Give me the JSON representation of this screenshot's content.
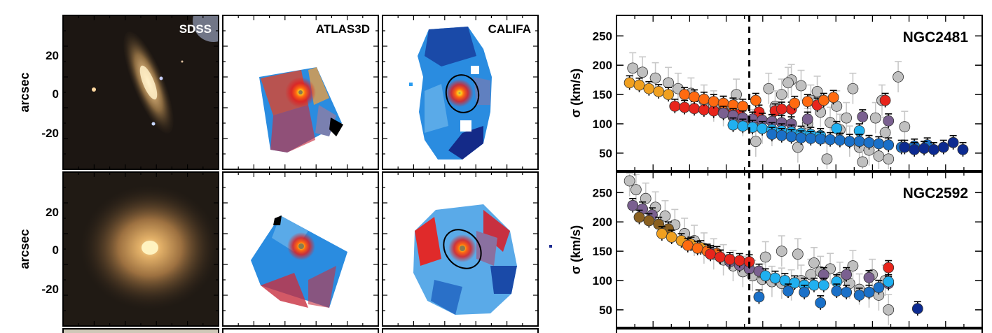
{
  "figure": {
    "column_labels": [
      "SDSS",
      "ATLAS3D",
      "CALIFA"
    ],
    "image_ylabel": "arcsec",
    "image_yticks": [
      "20",
      "0",
      "-20"
    ],
    "sigma_ylabel": "σ (km/s)",
    "colors": {
      "grey": "#c0c0c0",
      "red": "#e8251c",
      "orange": "#ff6a10",
      "gold": "#f0a020",
      "purple": "#7a6090",
      "lightblue": "#20b0f0",
      "blue": "#1a70c8",
      "navy": "#0c2a90",
      "brown": "#8a6020"
    }
  },
  "chart_data": [
    {
      "type": "scatter",
      "title": "NGC2481",
      "ylabel": "σ (km/s)",
      "ylim": [
        20,
        285
      ],
      "xlim": [
        0,
        10
      ],
      "yticks": [
        50,
        100,
        150,
        200,
        250
      ],
      "vline_x": 3.8,
      "series": [
        {
          "color": "grey",
          "points": [
            [
              0.2,
              195
            ],
            [
              0.5,
              188
            ],
            [
              0.9,
              178
            ],
            [
              1.3,
              170
            ],
            [
              1.6,
              160
            ],
            [
              2.0,
              152
            ],
            [
              2.4,
              140
            ],
            [
              2.7,
              130
            ],
            [
              3.0,
              122
            ],
            [
              3.3,
              112
            ],
            [
              3.6,
              105
            ],
            [
              3.9,
              98
            ],
            [
              4.2,
              92
            ],
            [
              4.5,
              88
            ],
            [
              4.8,
              150
            ],
            [
              5.1,
              175
            ],
            [
              5.4,
              165
            ],
            [
              5.7,
              140
            ],
            [
              6.0,
              120
            ],
            [
              6.3,
              102
            ],
            [
              6.6,
              90
            ],
            [
              6.9,
              70
            ],
            [
              7.2,
              60
            ],
            [
              7.5,
              55
            ],
            [
              7.8,
              45
            ],
            [
              8.1,
              40
            ],
            [
              8.4,
              180
            ],
            [
              4.4,
              160
            ],
            [
              5.0,
              170
            ],
            [
              5.9,
              155
            ],
            [
              6.5,
              130
            ],
            [
              7.0,
              160
            ],
            [
              7.7,
              110
            ],
            [
              8.0,
              85
            ],
            [
              8.6,
              95
            ],
            [
              4.0,
              70
            ],
            [
              5.3,
              60
            ],
            [
              6.2,
              40
            ],
            [
              7.3,
              35
            ],
            [
              3.4,
              150
            ],
            [
              4.6,
              130
            ],
            [
              5.6,
              100
            ],
            [
              6.8,
              110
            ],
            [
              7.9,
              140
            ]
          ]
        },
        {
          "color": "red",
          "points": [
            [
              1.5,
              130
            ],
            [
              1.8,
              128
            ],
            [
              2.1,
              126
            ],
            [
              2.4,
              124
            ],
            [
              2.7,
              122
            ],
            [
              3.0,
              120
            ],
            [
              3.3,
              118
            ],
            [
              3.5,
              116
            ],
            [
              4.1,
              120
            ],
            [
              4.6,
              122
            ],
            [
              5.1,
              125
            ],
            [
              5.9,
              132
            ],
            [
              4.8,
              125
            ],
            [
              8.0,
              140
            ]
          ]
        },
        {
          "color": "orange",
          "points": [
            [
              1.8,
              150
            ],
            [
              2.1,
              146
            ],
            [
              2.4,
              142
            ],
            [
              2.7,
              138
            ],
            [
              3.0,
              135
            ],
            [
              3.3,
              132
            ],
            [
              3.6,
              130
            ],
            [
              4.0,
              140
            ],
            [
              5.2,
              135
            ],
            [
              5.6,
              138
            ],
            [
              6.1,
              140
            ],
            [
              6.4,
              145
            ]
          ]
        },
        {
          "color": "gold",
          "points": [
            [
              0.1,
              170
            ],
            [
              0.4,
              166
            ],
            [
              0.7,
              160
            ],
            [
              1.0,
              155
            ],
            [
              1.3,
              150
            ]
          ]
        },
        {
          "color": "purple",
          "points": [
            [
              3.0,
              118
            ],
            [
              3.3,
              114
            ],
            [
              3.6,
              110
            ],
            [
              3.9,
              108
            ],
            [
              4.2,
              106
            ],
            [
              4.5,
              104
            ],
            [
              4.8,
              102
            ],
            [
              5.1,
              100
            ],
            [
              5.6,
              108
            ],
            [
              7.3,
              112
            ],
            [
              8.1,
              105
            ]
          ]
        },
        {
          "color": "lightblue",
          "points": [
            [
              3.3,
              98
            ],
            [
              3.6,
              96
            ],
            [
              3.9,
              94
            ],
            [
              4.2,
              92
            ],
            [
              4.5,
              90
            ],
            [
              4.8,
              88
            ],
            [
              5.1,
              86
            ],
            [
              5.4,
              84
            ],
            [
              5.7,
              82
            ],
            [
              6.0,
              80
            ],
            [
              6.5,
              92
            ],
            [
              7.2,
              88
            ]
          ]
        },
        {
          "color": "blue",
          "points": [
            [
              4.5,
              82
            ],
            [
              4.8,
              80
            ],
            [
              5.1,
              78
            ],
            [
              5.4,
              76
            ],
            [
              5.7,
              75
            ],
            [
              6.0,
              74
            ],
            [
              6.3,
              73
            ],
            [
              6.6,
              72
            ],
            [
              6.9,
              70
            ],
            [
              7.2,
              70
            ],
            [
              7.5,
              68
            ],
            [
              7.8,
              66
            ],
            [
              8.1,
              64
            ],
            [
              8.5,
              60
            ],
            [
              8.9,
              62
            ],
            [
              9.3,
              64
            ]
          ]
        },
        {
          "color": "navy",
          "points": [
            [
              8.6,
              60
            ],
            [
              8.9,
              56
            ],
            [
              9.2,
              58
            ],
            [
              9.5,
              56
            ],
            [
              9.8,
              60
            ],
            [
              10.1,
              68
            ],
            [
              10.4,
              56
            ]
          ]
        }
      ]
    },
    {
      "type": "scatter",
      "title": "NGC2592",
      "ylabel": "σ (km/s)",
      "ylim": [
        20,
        285
      ],
      "xlim": [
        0,
        10
      ],
      "yticks": [
        50,
        100,
        150,
        200,
        250
      ],
      "vline_x": 3.8,
      "series": [
        {
          "color": "grey",
          "points": [
            [
              0.1,
              270
            ],
            [
              0.3,
              255
            ],
            [
              0.6,
              240
            ],
            [
              0.9,
              225
            ],
            [
              1.2,
              210
            ],
            [
              1.5,
              195
            ],
            [
              1.8,
              180
            ],
            [
              2.1,
              168
            ],
            [
              2.4,
              155
            ],
            [
              2.7,
              145
            ],
            [
              3.0,
              135
            ],
            [
              3.3,
              125
            ],
            [
              3.6,
              115
            ],
            [
              3.9,
              108
            ],
            [
              4.2,
              102
            ],
            [
              4.5,
              98
            ],
            [
              4.8,
              95
            ],
            [
              5.1,
              92
            ],
            [
              5.4,
              100
            ],
            [
              5.7,
              110
            ],
            [
              6.0,
              115
            ],
            [
              6.3,
              120
            ],
            [
              6.6,
              105
            ],
            [
              6.9,
              95
            ],
            [
              7.2,
              85
            ],
            [
              7.5,
              80
            ],
            [
              7.8,
              75
            ],
            [
              8.1,
              50
            ],
            [
              4.3,
              140
            ],
            [
              4.8,
              150
            ],
            [
              5.3,
              145
            ],
            [
              5.8,
              130
            ],
            [
              7.0,
              125
            ],
            [
              7.6,
              110
            ],
            [
              8.0,
              100
            ]
          ]
        },
        {
          "color": "purple",
          "points": [
            [
              0.2,
              228
            ],
            [
              0.5,
              222
            ],
            [
              0.8,
              212
            ],
            [
              2.6,
              148
            ],
            [
              2.9,
              140
            ],
            [
              3.2,
              132
            ],
            [
              3.5,
              126
            ],
            [
              3.8,
              120
            ],
            [
              4.1,
              116
            ],
            [
              6.1,
              110
            ],
            [
              6.8,
              110
            ],
            [
              7.5,
              105
            ],
            [
              8.1,
              95
            ]
          ]
        },
        {
          "color": "brown",
          "points": [
            [
              0.4,
              208
            ],
            [
              0.7,
              202
            ],
            [
              1.0,
              196
            ],
            [
              1.3,
              188
            ]
          ]
        },
        {
          "color": "gold",
          "points": [
            [
              1.1,
              180
            ],
            [
              1.4,
              174
            ],
            [
              1.7,
              168
            ],
            [
              2.0,
              162
            ],
            [
              2.3,
              156
            ]
          ]
        },
        {
          "color": "orange",
          "points": [
            [
              1.9,
              160
            ],
            [
              2.2,
              155
            ],
            [
              2.5,
              150
            ],
            [
              2.8,
              146
            ]
          ]
        },
        {
          "color": "red",
          "points": [
            [
              2.6,
              145
            ],
            [
              2.9,
              140
            ],
            [
              3.2,
              136
            ],
            [
              3.5,
              134
            ],
            [
              3.8,
              132
            ],
            [
              8.1,
              122
            ]
          ]
        },
        {
          "color": "lightblue",
          "points": [
            [
              4.3,
              108
            ],
            [
              4.6,
              104
            ],
            [
              4.9,
              100
            ],
            [
              5.2,
              96
            ],
            [
              5.5,
              92
            ],
            [
              5.8,
              92
            ],
            [
              6.1,
              92
            ],
            [
              6.5,
              98
            ],
            [
              8.1,
              98
            ]
          ]
        },
        {
          "color": "blue",
          "points": [
            [
              4.1,
              72
            ],
            [
              5.0,
              82
            ],
            [
              5.5,
              80
            ],
            [
              6.5,
              82
            ],
            [
              6.8,
              80
            ],
            [
              7.2,
              75
            ],
            [
              7.5,
              80
            ],
            [
              7.8,
              88
            ],
            [
              6.0,
              62
            ]
          ]
        },
        {
          "color": "navy",
          "points": [
            [
              9.0,
              52
            ]
          ]
        }
      ]
    }
  ]
}
